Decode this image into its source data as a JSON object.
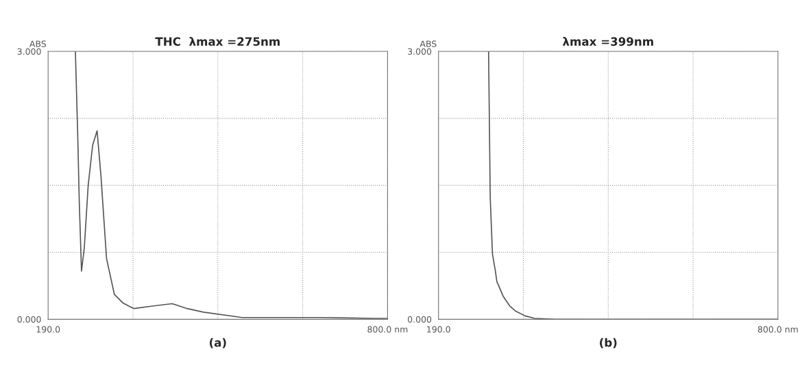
{
  "chart_data": [
    {
      "type": "line",
      "title": "THC  λmax =275nm",
      "xlabel": "(a)",
      "ylabel": "ABS",
      "grid": true,
      "xlim": [
        190,
        800
      ],
      "ylim": [
        0,
        3
      ],
      "xticks": [
        {
          "value": 190,
          "label": "190.0"
        },
        {
          "value": 342.5,
          "label": null
        },
        {
          "value": 495,
          "label": null
        },
        {
          "value": 647.5,
          "label": null
        },
        {
          "value": 800,
          "label": "800.0 nm"
        }
      ],
      "yticks": [
        {
          "value": 0,
          "label": "0.000"
        },
        {
          "value": 0.75,
          "label": null
        },
        {
          "value": 1.5,
          "label": null
        },
        {
          "value": 2.25,
          "label": null
        },
        {
          "value": 3,
          "label": "3.000"
        }
      ],
      "series": [
        {
          "color": "#555555",
          "x": [
            239,
            243,
            246,
            250,
            255,
            262,
            270,
            278,
            285,
            295,
            309,
            325,
            344,
            380,
            413,
            440,
            469,
            539,
            600,
            678,
            776,
            800
          ],
          "values": [
            3.0,
            2.11,
            1.31,
            0.54,
            0.8,
            1.5,
            1.95,
            2.11,
            1.6,
            0.68,
            0.28,
            0.18,
            0.12,
            0.15,
            0.175,
            0.12,
            0.08,
            0.02,
            0.02,
            0.02,
            0.01,
            0.01
          ]
        }
      ]
    },
    {
      "type": "line",
      "title": "λmax =399nm",
      "xlabel": "(b)",
      "ylabel": "ABS",
      "grid": true,
      "xlim": [
        190,
        800
      ],
      "ylim": [
        0,
        3
      ],
      "xticks": [
        {
          "value": 190,
          "label": "190.0"
        },
        {
          "value": 342.5,
          "label": null
        },
        {
          "value": 495,
          "label": null
        },
        {
          "value": 647.5,
          "label": null
        },
        {
          "value": 800,
          "label": "800.0 nm"
        }
      ],
      "yticks": [
        {
          "value": 0,
          "label": "0.000"
        },
        {
          "value": 0.75,
          "label": null
        },
        {
          "value": 1.5,
          "label": null
        },
        {
          "value": 2.25,
          "label": null
        },
        {
          "value": 3,
          "label": "3.000"
        }
      ],
      "series": [
        {
          "color": "#555555",
          "x": [
            280,
            283,
            287,
            292,
            295,
            300,
            306,
            318,
            329,
            345,
            363,
            400,
            500,
            650,
            800
          ],
          "values": [
            3.0,
            1.36,
            0.73,
            0.55,
            0.42,
            0.35,
            0.26,
            0.15,
            0.09,
            0.04,
            0.01,
            0.0,
            0.0,
            0.0,
            0.0
          ]
        }
      ]
    }
  ]
}
